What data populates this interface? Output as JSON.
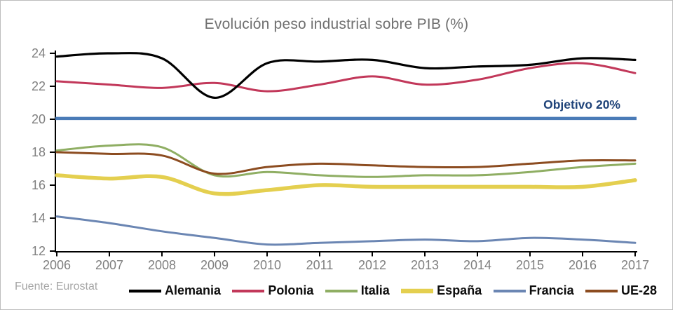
{
  "chart_data": {
    "type": "line",
    "title": "Evolución peso industrial sobre PIB (%)",
    "source": "Fuente: Eurostat",
    "x": [
      2006,
      2007,
      2008,
      2009,
      2010,
      2011,
      2012,
      2013,
      2014,
      2015,
      2016,
      2017
    ],
    "ylim": [
      12,
      24
    ],
    "yticks": [
      12,
      14,
      16,
      18,
      20,
      22,
      24
    ],
    "grid": false,
    "legend_position": "bottom",
    "smooth_lines": true,
    "axis_color": "#000000",
    "tick_label_color": "#7f7f7f",
    "title_color": "#6f6f6f",
    "target_line": {
      "value": 20.05,
      "label": "Objetivo 20%",
      "color": "#4a7bb7",
      "label_color": "#1f4379"
    },
    "series": [
      {
        "name": "Alemania",
        "color": "#000000",
        "width": 3.2,
        "values": [
          23.8,
          24.0,
          23.7,
          21.3,
          23.4,
          23.5,
          23.6,
          23.1,
          23.2,
          23.3,
          23.7,
          23.6
        ]
      },
      {
        "name": "Polonia",
        "color": "#c2385a",
        "width": 3,
        "values": [
          22.3,
          22.1,
          21.9,
          22.2,
          21.7,
          22.1,
          22.6,
          22.1,
          22.4,
          23.1,
          23.4,
          22.8
        ]
      },
      {
        "name": "Italia",
        "color": "#8fae63",
        "width": 3,
        "values": [
          18.1,
          18.4,
          18.3,
          16.6,
          16.8,
          16.6,
          16.5,
          16.6,
          16.6,
          16.8,
          17.1,
          17.3
        ]
      },
      {
        "name": "España",
        "color": "#e4cf4f",
        "width": 5.5,
        "values": [
          16.6,
          16.4,
          16.5,
          15.5,
          15.7,
          16.0,
          15.9,
          15.9,
          15.9,
          15.9,
          15.9,
          16.3
        ]
      },
      {
        "name": "Francia",
        "color": "#6b86b3",
        "width": 3,
        "values": [
          14.1,
          13.7,
          13.2,
          12.8,
          12.4,
          12.5,
          12.6,
          12.7,
          12.6,
          12.8,
          12.7,
          12.5
        ]
      },
      {
        "name": "UE-28",
        "color": "#8c4c20",
        "width": 3,
        "values": [
          18.0,
          17.9,
          17.8,
          16.7,
          17.1,
          17.3,
          17.2,
          17.1,
          17.1,
          17.3,
          17.5,
          17.5
        ]
      }
    ]
  }
}
